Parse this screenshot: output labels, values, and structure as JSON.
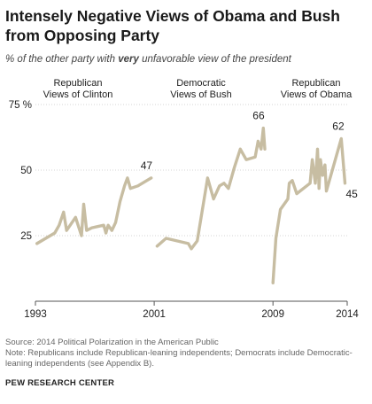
{
  "title": "Intensely Negative Views of Obama and Bush from Opposing Party",
  "subtitle_parts": [
    "% of the other party with ",
    "very",
    " unfavorable view of the president"
  ],
  "chart_data": {
    "type": "line",
    "title": "Intensely Negative Views of Obama and Bush from Opposing Party",
    "xlim": [
      1993,
      2014
    ],
    "ylim": [
      0,
      75
    ],
    "x_ticks": [
      "1993",
      "2001",
      "2009",
      "2014"
    ],
    "y_ticks": [
      "25",
      "50",
      "75 %"
    ],
    "grid": true,
    "color": "#c7bda2",
    "series": [
      {
        "name": "Republican Views of Clinton",
        "label_lines": [
          "Republican",
          "Views of Clinton"
        ],
        "end_label": "47",
        "points": [
          [
            1993.1,
            22
          ],
          [
            1994.3,
            26
          ],
          [
            1994.6,
            29
          ],
          [
            1994.9,
            34
          ],
          [
            1995.1,
            27
          ],
          [
            1995.7,
            32
          ],
          [
            1996.1,
            25
          ],
          [
            1996.25,
            37
          ],
          [
            1996.45,
            27
          ],
          [
            1996.8,
            28
          ],
          [
            1997.6,
            29
          ],
          [
            1997.75,
            26
          ],
          [
            1997.9,
            29
          ],
          [
            1998.15,
            27
          ],
          [
            1998.4,
            30
          ],
          [
            1998.7,
            38
          ],
          [
            1999.0,
            44
          ],
          [
            1999.2,
            47
          ],
          [
            1999.4,
            43
          ],
          [
            1999.9,
            44
          ],
          [
            2000.5,
            46
          ],
          [
            2000.8,
            47
          ]
        ]
      },
      {
        "name": "Democratic Views of Bush",
        "label_lines": [
          "Democratic",
          "Views of Bush"
        ],
        "end_label": "66",
        "points": [
          [
            2001.2,
            21
          ],
          [
            2001.8,
            24
          ],
          [
            2003.3,
            22
          ],
          [
            2003.5,
            20
          ],
          [
            2003.9,
            23
          ],
          [
            2004.6,
            47
          ],
          [
            2005.0,
            39
          ],
          [
            2005.4,
            44
          ],
          [
            2005.7,
            45
          ],
          [
            2006.0,
            43
          ],
          [
            2006.4,
            51
          ],
          [
            2006.8,
            58
          ],
          [
            2007.2,
            54
          ],
          [
            2007.8,
            55
          ],
          [
            2008.0,
            61
          ],
          [
            2008.2,
            58
          ],
          [
            2008.35,
            66
          ],
          [
            2008.45,
            58
          ]
        ]
      },
      {
        "name": "Republican Views of Obama",
        "label_lines": [
          "Republican",
          "Views of Obama"
        ],
        "end_label_1": "62",
        "end_label_2": "45",
        "points": [
          [
            2009.0,
            7
          ],
          [
            2009.2,
            24
          ],
          [
            2009.5,
            35
          ],
          [
            2010.0,
            39
          ],
          [
            2010.1,
            45
          ],
          [
            2010.3,
            46
          ],
          [
            2010.6,
            41
          ],
          [
            2011.5,
            45
          ],
          [
            2011.65,
            54
          ],
          [
            2011.85,
            45
          ],
          [
            2012.0,
            58
          ],
          [
            2012.1,
            43
          ],
          [
            2012.2,
            54
          ],
          [
            2012.35,
            48
          ],
          [
            2012.5,
            52
          ],
          [
            2012.6,
            42
          ],
          [
            2013.6,
            62
          ],
          [
            2013.85,
            45
          ]
        ]
      }
    ]
  },
  "source": "Source: 2014 Political Polarization in the American Public",
  "note": "Note: Republicans include Republican-leaning independents; Democrats include Democratic-leaning independents (see Appendix B).",
  "org": "PEW RESEARCH CENTER"
}
